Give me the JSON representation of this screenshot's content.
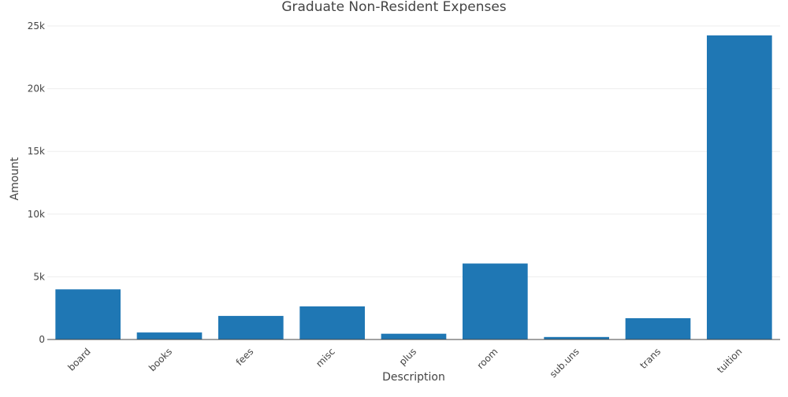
{
  "chart_data": {
    "type": "bar",
    "title": "Graduate Non-Resident Expenses",
    "xlabel": "Description",
    "ylabel": "Amount",
    "categories": [
      "board",
      "books",
      "fees",
      "misc",
      "plus",
      "room",
      "sub.uns",
      "trans",
      "tuition"
    ],
    "values": [
      4000,
      560,
      1880,
      2640,
      460,
      6060,
      200,
      1700,
      24250
    ],
    "ylim": [
      0,
      25000
    ],
    "yticks": [
      0,
      5000,
      10000,
      15000,
      20000,
      25000
    ],
    "ytick_labels": [
      "0",
      "5k",
      "10k",
      "15k",
      "20k",
      "25k"
    ],
    "grid": true,
    "colors": {
      "bar": "#1f77b4",
      "grid": "#eeeeee",
      "axis": "#444444",
      "text": "#444444"
    }
  }
}
